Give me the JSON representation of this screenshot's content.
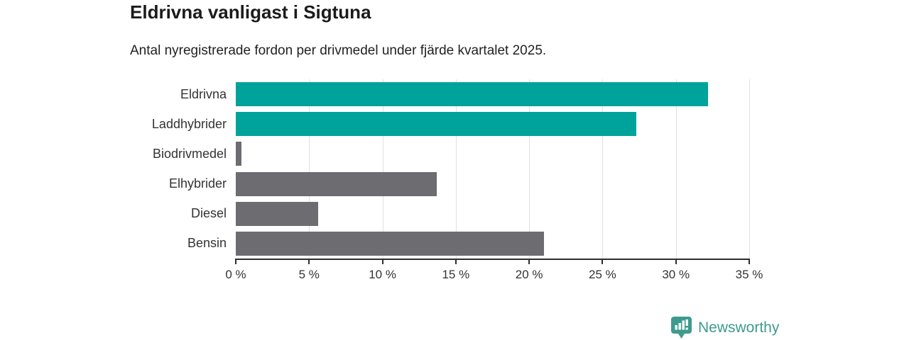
{
  "chart_data": {
    "type": "bar",
    "orientation": "horizontal",
    "title": "Eldrivna vanligast i Sigtuna",
    "subtitle": "Antal nyregistrerade fordon per drivmedel under fjärde kvartalet 2025.",
    "categories": [
      "Eldrivna",
      "Laddhybrider",
      "Biodrivmedel",
      "Elhybrider",
      "Diesel",
      "Bensin"
    ],
    "values": [
      32.2,
      27.3,
      0.4,
      13.7,
      5.6,
      21.0
    ],
    "unit": "%",
    "bar_colors": [
      "#00a39b",
      "#00a39b",
      "#6c6c71",
      "#6c6c71",
      "#6c6c71",
      "#6c6c71"
    ],
    "highlight_color": "#00a39b",
    "default_color": "#6c6c71",
    "xlim": [
      0,
      35
    ],
    "xticks": [
      0,
      5,
      10,
      15,
      20,
      25,
      30,
      35
    ],
    "xtick_labels": [
      "0 %",
      "5 %",
      "10 %",
      "15 %",
      "20 %",
      "25 %",
      "30 %",
      "35 %"
    ],
    "grid": "vertical-only",
    "gridline_color": "#e1e1e1",
    "axis_color": "#2e2e2e",
    "legend": "none"
  },
  "footer": {
    "brand": "Newsworthy",
    "brand_color": "#3d9b8e"
  }
}
